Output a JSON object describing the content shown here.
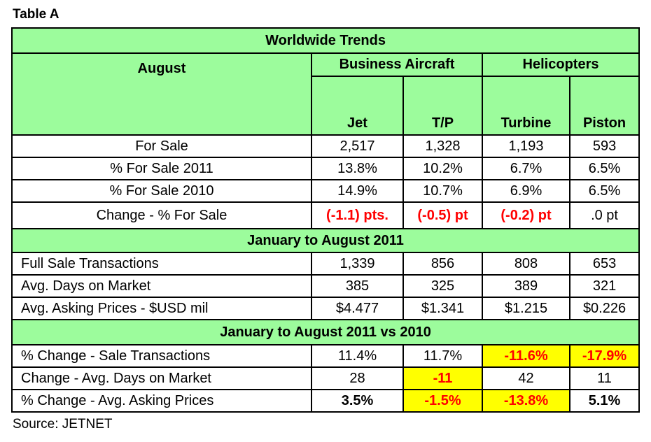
{
  "caption": "Table A",
  "source": "Source: JETNET",
  "header": {
    "title": "Worldwide Trends",
    "row_label": "August",
    "group_business": "Business Aircraft",
    "group_helicopters": "Helicopters",
    "columns": [
      "Jet",
      "T/P",
      "Turbine",
      "Piston"
    ]
  },
  "section1": [
    {
      "label": "For Sale",
      "values": [
        "2,517",
        "1,328",
        "1,193",
        "593"
      ]
    },
    {
      "label": "% For Sale 2011",
      "values": [
        "13.8%",
        "10.2%",
        "6.7%",
        "6.5%"
      ]
    },
    {
      "label": "% For Sale 2010",
      "values": [
        "14.9%",
        "10.7%",
        "6.9%",
        "6.5%"
      ]
    },
    {
      "label": "Change - % For Sale",
      "values": [
        "(-1.1) pts.",
        "(-0.5) pt",
        "(-0.2) pt",
        ".0 pt"
      ]
    }
  ],
  "section2_title": "January to August 2011",
  "section2": [
    {
      "label": "Full Sale Transactions",
      "values": [
        "1,339",
        "856",
        "808",
        "653"
      ]
    },
    {
      "label": "Avg. Days on Market",
      "values": [
        "385",
        "325",
        "389",
        "321"
      ]
    },
    {
      "label": "Avg. Asking Prices - $USD mil",
      "values": [
        "$4.477",
        "$1.341",
        "$1.215",
        "$0.226"
      ]
    }
  ],
  "section3_title": "January to August 2011 vs 2010",
  "section3": [
    {
      "label": "% Change  - Sale Transactions",
      "values": [
        "11.4%",
        "11.7%",
        "-11.6%",
        "-17.9%"
      ]
    },
    {
      "label": "Change - Avg. Days on Market",
      "values": [
        "28",
        "-11",
        "42",
        "11"
      ]
    },
    {
      "label": "% Change - Avg. Asking Prices",
      "values": [
        "3.5%",
        "-1.5%",
        "-13.8%",
        "5.1%"
      ]
    }
  ]
}
